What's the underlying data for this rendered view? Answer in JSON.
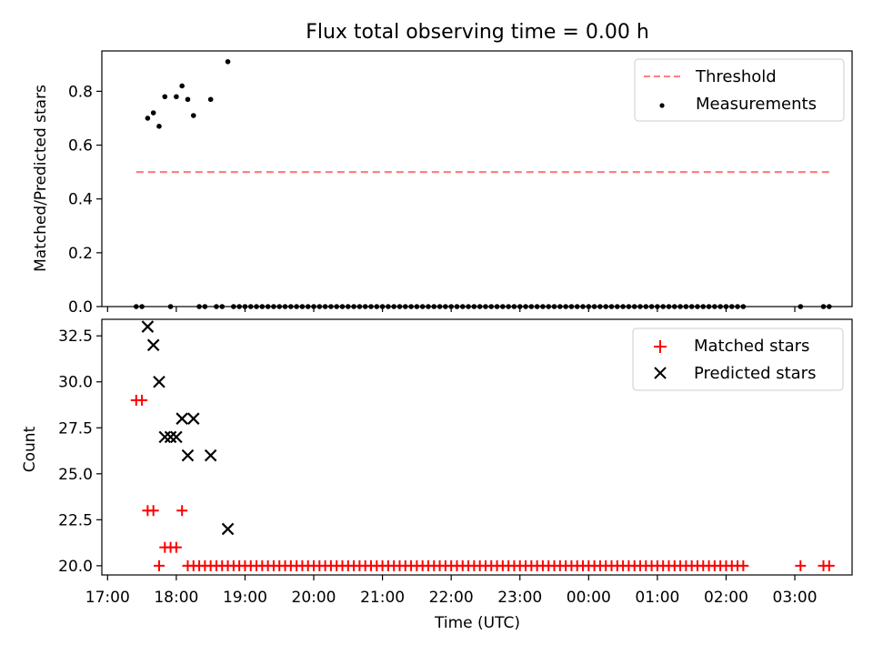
{
  "title": "Flux total observing time = 0.00 h",
  "colors": {
    "threshold": "#ff7f7f",
    "matched": "#ff0000",
    "predicted": "#000000",
    "measurement": "#000000"
  },
  "chart_data": [
    {
      "type": "scatter",
      "panel": "top",
      "xlabel": "",
      "ylabel": "Matched/Predicted stars",
      "ylim": [
        0,
        0.95
      ],
      "yticks": [
        "0.0",
        "0.2",
        "0.4",
        "0.6",
        "0.8"
      ],
      "legend": {
        "placement": "top-right",
        "entries": [
          "Threshold",
          "Measurements"
        ]
      },
      "threshold": {
        "name": "Threshold",
        "y": 0.5,
        "x_start": "17:25",
        "x_end": "03:30",
        "style": "dashed"
      },
      "series": [
        {
          "name": "Measurements",
          "x": [
            "17:35",
            "17:40",
            "17:45",
            "17:50",
            "18:00",
            "18:05",
            "18:10",
            "18:15",
            "18:30",
            "18:45"
          ],
          "y": [
            0.7,
            0.72,
            0.67,
            0.78,
            0.78,
            0.82,
            0.77,
            0.71,
            0.77,
            0.91
          ]
        },
        {
          "name": "Measurements (zero)",
          "x_range": [
            "17:25",
            "02:15"
          ],
          "sparse": [
            "17:25",
            "17:30",
            "17:55",
            "18:20",
            "18:25",
            "18:35",
            "18:40"
          ],
          "dense_from": "18:50",
          "dense_step_min": 5,
          "extra": [
            "03:05",
            "03:25",
            "03:30"
          ],
          "y": 0
        }
      ]
    },
    {
      "type": "scatter",
      "panel": "bottom",
      "xlabel": "Time (UTC)",
      "ylabel": "Count",
      "ylim": [
        19.5,
        33.4
      ],
      "yticks": [
        "20.0",
        "22.5",
        "25.0",
        "27.5",
        "30.0",
        "32.5"
      ],
      "xticks": [
        "17:00",
        "18:00",
        "19:00",
        "20:00",
        "21:00",
        "22:00",
        "23:00",
        "00:00",
        "01:00",
        "02:00",
        "03:00"
      ],
      "xlim": [
        "16:55",
        "03:50"
      ],
      "legend": {
        "placement": "top-right",
        "entries": [
          "Matched stars",
          "Predicted stars"
        ]
      },
      "series": [
        {
          "name": "Matched stars",
          "marker": "+",
          "points": [
            [
              "17:25",
              29
            ],
            [
              "17:30",
              29
            ],
            [
              "17:35",
              23
            ],
            [
              "17:40",
              23
            ],
            [
              "17:45",
              20
            ],
            [
              "17:50",
              21
            ],
            [
              "17:55",
              21
            ],
            [
              "18:00",
              21
            ],
            [
              "18:05",
              23
            ]
          ],
          "constant_20_from": "18:10",
          "constant_20_to": "02:15",
          "constant_20_step_min": 5,
          "extra_20": [
            "03:05",
            "03:25",
            "03:30"
          ]
        },
        {
          "name": "Predicted stars",
          "marker": "x",
          "points": [
            [
              "17:35",
              33
            ],
            [
              "17:40",
              32
            ],
            [
              "17:45",
              30
            ],
            [
              "17:50",
              27
            ],
            [
              "17:55",
              27
            ],
            [
              "18:00",
              27
            ],
            [
              "18:05",
              28
            ],
            [
              "18:10",
              26
            ],
            [
              "18:15",
              28
            ],
            [
              "18:30",
              26
            ],
            [
              "18:45",
              22
            ]
          ]
        }
      ]
    }
  ]
}
